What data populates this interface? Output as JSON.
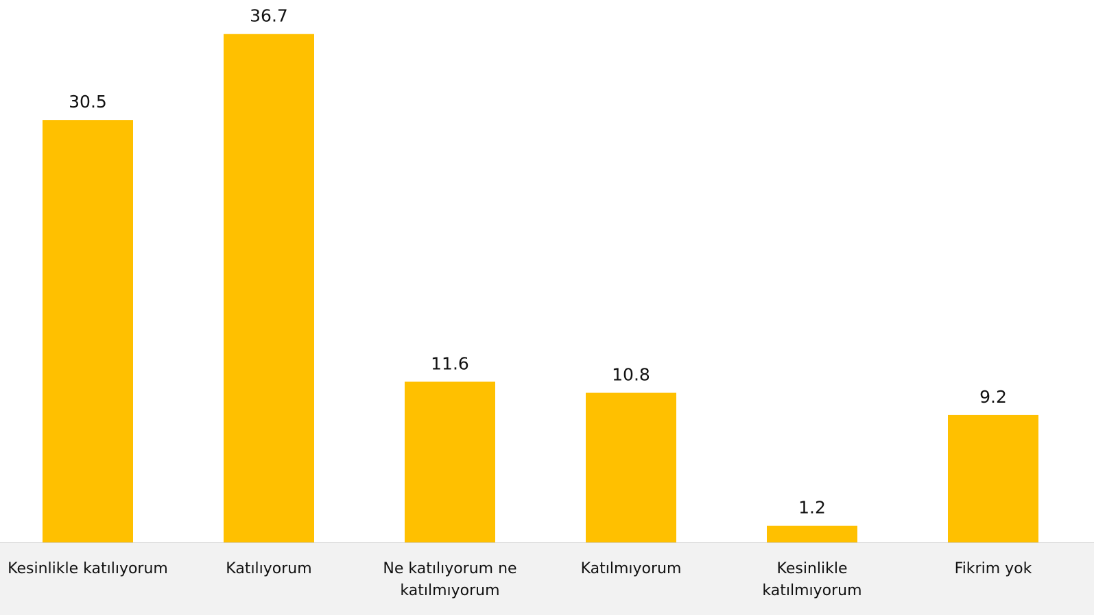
{
  "chart_data": {
    "type": "bar",
    "categories": [
      "Kesinlikle katılıyorum",
      "Katılıyorum",
      "Ne katılıyorum ne katılmıyorum",
      "Katılmıyorum",
      "Kesinlikle katılmıyorum",
      "Fikrim yok"
    ],
    "values": [
      30.5,
      36.7,
      11.6,
      10.8,
      1.2,
      9.2
    ],
    "color": "#ffc000",
    "ylim": [
      0,
      40
    ]
  }
}
